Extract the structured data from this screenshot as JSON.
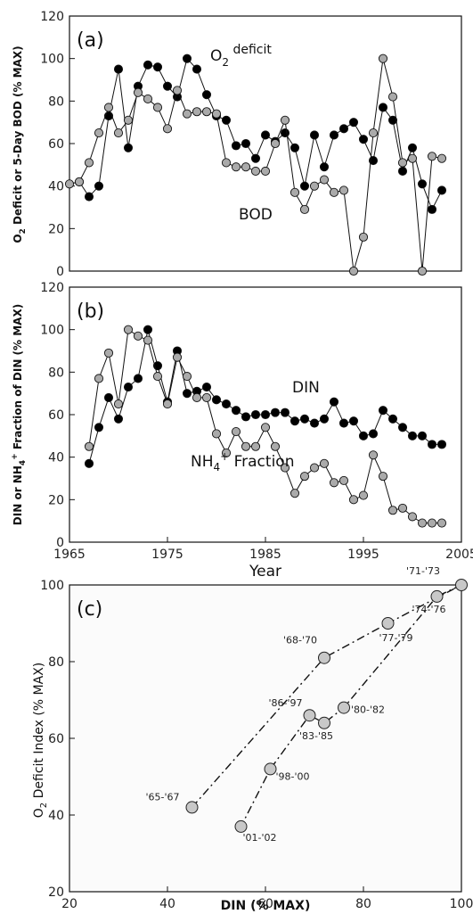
{
  "chart_data": [
    {
      "type": "line",
      "panel": "(a)",
      "ylabel": "O2 Deficit or 5-Day BOD (% MAX)",
      "ylim": [
        0,
        120
      ],
      "xlim": [
        1965,
        2005
      ],
      "yticks": [
        "0",
        "20",
        "40",
        "60",
        "80",
        "100",
        "120"
      ],
      "grid": false,
      "series": [
        {
          "name": "O2 deficit",
          "color": "#000000",
          "x": [
            1966,
            1967,
            1968,
            1969,
            1970,
            1971,
            1972,
            1973,
            1974,
            1975,
            1976,
            1977,
            1978,
            1979,
            1980,
            1981,
            1982,
            1983,
            1984,
            1985,
            1986,
            1987,
            1988,
            1989,
            1990,
            1991,
            1992,
            1993,
            1994,
            1995,
            1996,
            1997,
            1998,
            1999,
            2000,
            2001,
            2002,
            2003
          ],
          "y": [
            42,
            35,
            40,
            73,
            95,
            58,
            87,
            97,
            96,
            87,
            82,
            100,
            95,
            83,
            73,
            71,
            59,
            60,
            53,
            64,
            61,
            65,
            58,
            40,
            64,
            49,
            64,
            67,
            70,
            62,
            52,
            77,
            71,
            47,
            58,
            41,
            29,
            38
          ]
        },
        {
          "name": "BOD",
          "color": "#aaaaaa",
          "x": [
            1965,
            1966,
            1967,
            1968,
            1969,
            1970,
            1971,
            1972,
            1973,
            1974,
            1975,
            1976,
            1977,
            1978,
            1979,
            1980,
            1981,
            1982,
            1983,
            1984,
            1985,
            1986,
            1987,
            1988,
            1989,
            1990,
            1991,
            1992,
            1993,
            1994,
            1995,
            1996,
            1997,
            1998,
            1999,
            2000,
            2001,
            2002,
            2003
          ],
          "y": [
            41,
            42,
            51,
            65,
            77,
            65,
            71,
            84,
            81,
            77,
            67,
            85,
            74,
            75,
            75,
            74,
            51,
            49,
            49,
            47,
            47,
            60,
            71,
            37,
            29,
            40,
            43,
            37,
            38,
            0,
            16,
            65,
            100,
            82,
            51,
            53,
            0,
            54,
            53
          ]
        }
      ]
    },
    {
      "type": "line",
      "panel": "(b)",
      "ylabel": "DIN or NH4+ Fraction of DIN (% MAX)",
      "xlabel": "Year",
      "ylim": [
        0,
        120
      ],
      "xlim": [
        1965,
        2005
      ],
      "yticks": [
        "0",
        "20",
        "40",
        "60",
        "80",
        "100",
        "120"
      ],
      "xticks": [
        "1965",
        "1975",
        "1985",
        "1995",
        "2005"
      ],
      "grid": false,
      "series": [
        {
          "name": "DIN",
          "color": "#000000",
          "x": [
            1967,
            1968,
            1969,
            1970,
            1971,
            1972,
            1973,
            1974,
            1975,
            1976,
            1977,
            1978,
            1979,
            1980,
            1981,
            1982,
            1983,
            1984,
            1985,
            1986,
            1987,
            1988,
            1989,
            1990,
            1991,
            1992,
            1993,
            1994,
            1995,
            1996,
            1997,
            1998,
            1999,
            2000,
            2001,
            2002,
            2003
          ],
          "y": [
            37,
            54,
            68,
            58,
            73,
            77,
            100,
            83,
            66,
            90,
            70,
            71,
            73,
            67,
            65,
            62,
            59,
            60,
            60,
            61,
            61,
            57,
            58,
            56,
            58,
            66,
            56,
            57,
            50,
            51,
            62,
            58,
            54,
            50,
            50,
            46,
            46
          ]
        },
        {
          "name": "NH4+ Fraction",
          "color": "#aaaaaa",
          "x": [
            1967,
            1968,
            1969,
            1970,
            1971,
            1972,
            1973,
            1974,
            1975,
            1976,
            1977,
            1978,
            1979,
            1980,
            1981,
            1982,
            1983,
            1984,
            1985,
            1986,
            1987,
            1988,
            1989,
            1990,
            1991,
            1992,
            1993,
            1994,
            1995,
            1996,
            1997,
            1998,
            1999,
            2000,
            2001,
            2002,
            2003
          ],
          "y": [
            45,
            77,
            89,
            65,
            100,
            97,
            95,
            78,
            65,
            87,
            78,
            68,
            68,
            51,
            42,
            52,
            45,
            45,
            54,
            45,
            35,
            23,
            31,
            35,
            37,
            28,
            29,
            20,
            22,
            41,
            31,
            15,
            16,
            12,
            9,
            9,
            9
          ]
        }
      ]
    },
    {
      "type": "scatter",
      "panel": "(c)",
      "xlabel": "DIN (% MAX)",
      "ylabel": "O2 Deficit Index (% MAX)",
      "xlim": [
        20,
        100
      ],
      "ylim": [
        20,
        100
      ],
      "xticks": [
        "20",
        "40",
        "60",
        "80",
        "100"
      ],
      "yticks": [
        "20",
        "40",
        "60",
        "80",
        "100"
      ],
      "grid": false,
      "points": [
        {
          "label": "'65-'67",
          "x": 45,
          "y": 42
        },
        {
          "label": "'68-'70",
          "x": 72,
          "y": 81
        },
        {
          "label": "'71-'73",
          "x": 100,
          "y": 100
        },
        {
          "label": "'74-'76",
          "x": 95,
          "y": 97
        },
        {
          "label": "'77-'79",
          "x": 85,
          "y": 90
        },
        {
          "label": "'80-'82",
          "x": 76,
          "y": 68
        },
        {
          "label": "'83-'85",
          "x": 72,
          "y": 64
        },
        {
          "label": "'86-'97",
          "x": 69,
          "y": 66
        },
        {
          "label": "'98-'00",
          "x": 61,
          "y": 52
        },
        {
          "label": "'01-'02",
          "x": 55,
          "y": 37
        }
      ],
      "path_1": [
        "'65-'67",
        "'68-'70",
        "'77-'79",
        "'71-'73"
      ],
      "path_2": [
        "'71-'73",
        "'74-'76",
        "'80-'82",
        "'83-'85",
        "'86-'97",
        "'98-'00",
        "'01-'02"
      ]
    }
  ]
}
